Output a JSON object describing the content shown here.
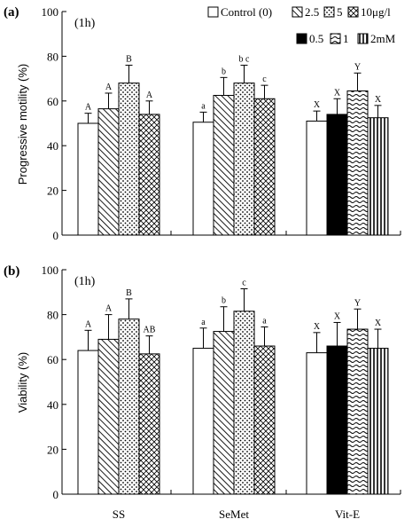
{
  "figure": {
    "colors": {
      "ink": "#000000",
      "background": "#ffffff"
    }
  },
  "legend": {
    "row1": [
      {
        "label": "Control (0)",
        "pattern": "white"
      },
      {
        "label": "2.5",
        "pattern": "diag"
      },
      {
        "label": "5",
        "pattern": "dots"
      },
      {
        "label": "10μg/l",
        "pattern": "cross"
      }
    ],
    "row2": [
      {
        "label": "0.5",
        "pattern": "black"
      },
      {
        "label": "1",
        "pattern": "wave"
      },
      {
        "label": "2mM",
        "pattern": "vlines"
      }
    ]
  },
  "chart_data": [
    {
      "type": "bar",
      "panel": "(a)",
      "annotation": "(1h)",
      "ylabel": "Progressive motility (%)",
      "ylim": [
        0,
        100
      ],
      "yticks": [
        0,
        20,
        40,
        60,
        80,
        100
      ],
      "groups": [
        {
          "name": "SS",
          "bars": [
            {
              "pattern": "white",
              "value": 50,
              "err": 4.5,
              "letter": "A"
            },
            {
              "pattern": "diag",
              "value": 56.5,
              "err": 7,
              "letter": "A"
            },
            {
              "pattern": "dots",
              "value": 68,
              "err": 8,
              "letter": "B"
            },
            {
              "pattern": "cross",
              "value": 54,
              "err": 6,
              "letter": "A"
            }
          ]
        },
        {
          "name": "SeMet",
          "bars": [
            {
              "pattern": "white",
              "value": 50.5,
              "err": 4.5,
              "letter": "a"
            },
            {
              "pattern": "diag",
              "value": 62.5,
              "err": 8,
              "letter": "b"
            },
            {
              "pattern": "dots",
              "value": 68,
              "err": 8,
              "letter": "b c"
            },
            {
              "pattern": "cross",
              "value": 61,
              "err": 6,
              "letter": "c"
            }
          ]
        },
        {
          "name": "Vit-E",
          "bars": [
            {
              "pattern": "white",
              "value": 51,
              "err": 4.5,
              "letter": "X"
            },
            {
              "pattern": "black",
              "value": 54,
              "err": 7,
              "letter": "X"
            },
            {
              "pattern": "wave",
              "value": 64.5,
              "err": 8,
              "letter": "Y"
            },
            {
              "pattern": "vlines",
              "value": 52.5,
              "err": 5.5,
              "letter": "X"
            }
          ]
        }
      ]
    },
    {
      "type": "bar",
      "panel": "(b)",
      "annotation": "(1h)",
      "ylabel": "Viability (%)",
      "ylim": [
        0,
        100
      ],
      "yticks": [
        0,
        20,
        40,
        60,
        80,
        100
      ],
      "categories": [
        "SS",
        "SeMet",
        "Vit-E"
      ],
      "groups": [
        {
          "name": "SS",
          "bars": [
            {
              "pattern": "white",
              "value": 64,
              "err": 9,
              "letter": "A"
            },
            {
              "pattern": "diag",
              "value": 69,
              "err": 11,
              "letter": "A"
            },
            {
              "pattern": "dots",
              "value": 78,
              "err": 9,
              "letter": "B"
            },
            {
              "pattern": "cross",
              "value": 62.5,
              "err": 8,
              "letter": "AB"
            }
          ]
        },
        {
          "name": "SeMet",
          "bars": [
            {
              "pattern": "white",
              "value": 65,
              "err": 9,
              "letter": "a"
            },
            {
              "pattern": "diag",
              "value": 72.5,
              "err": 11,
              "letter": "b"
            },
            {
              "pattern": "dots",
              "value": 81.5,
              "err": 10,
              "letter": "c"
            },
            {
              "pattern": "cross",
              "value": 66,
              "err": 8.5,
              "letter": "a"
            }
          ]
        },
        {
          "name": "Vit-E",
          "bars": [
            {
              "pattern": "white",
              "value": 63,
              "err": 9,
              "letter": "X"
            },
            {
              "pattern": "black",
              "value": 66,
              "err": 10.5,
              "letter": "X"
            },
            {
              "pattern": "wave",
              "value": 73.5,
              "err": 9,
              "letter": "Y"
            },
            {
              "pattern": "vlines",
              "value": 65,
              "err": 8.5,
              "letter": "X"
            }
          ]
        }
      ]
    }
  ]
}
